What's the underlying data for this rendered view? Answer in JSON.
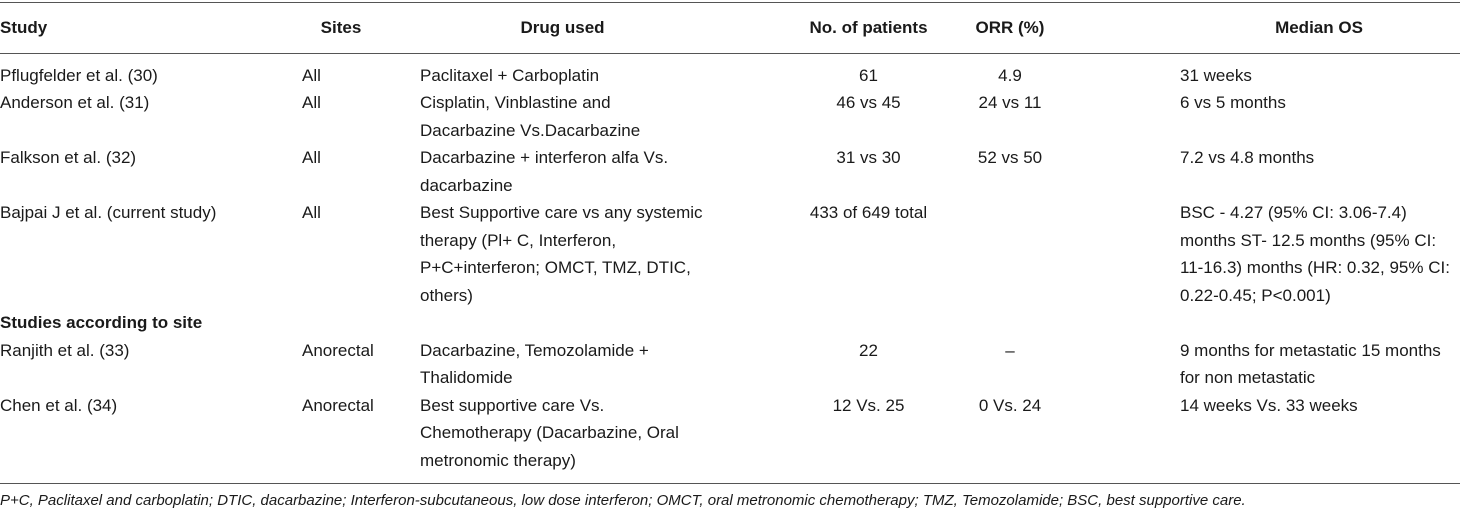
{
  "table": {
    "columns": [
      "Study",
      "Sites",
      "Drug used",
      "No. of patients",
      "ORR (%)",
      "Median OS"
    ],
    "rows": [
      [
        "Pflugfelder et al. (30)",
        "All",
        "Paclitaxel + Carboplatin",
        "61",
        "4.9",
        "31 weeks"
      ],
      [
        "Anderson et al. (31)",
        "All",
        "Cisplatin, Vinblastine and Dacarbazine Vs.Dacarbazine",
        "46 vs 45",
        "24 vs 11",
        "6 vs 5 months"
      ],
      [
        "Falkson et al. (32)",
        "All",
        "Dacarbazine + interferon alfa Vs. dacarbazine",
        "31 vs 30",
        "52 vs 50",
        "7.2 vs 4.8 months"
      ],
      [
        "Bajpai J et al. (current study)",
        "All",
        "Best Supportive care vs any systemic therapy (Pl+ C, Interferon, P+C+interferon; OMCT, TMZ, DTIC, others)",
        "433 of 649 total",
        null,
        "BSC - 4.27 (95% CI: 3.06-7.4) months ST- 12.5 months (95% CI: 11-16.3) months (HR: 0.32, 95% CI: 0.22-0.45; P<0.001)"
      ]
    ],
    "section": "Studies according to site",
    "section_rows": [
      [
        "Ranjith et al. (33)",
        "Anorectal",
        "Dacarbazine, Temozolamide + Thalidomide",
        "22",
        "–",
        "9 months for metastatic 15 months for non metastatic"
      ],
      [
        "Chen et al. (34)",
        "Anorectal",
        "Best supportive care Vs. Chemotherapy (Dacarbazine, Oral metronomic therapy)",
        "12 Vs. 25",
        "0 Vs. 24",
        "14 weeks Vs. 33 weeks"
      ]
    ],
    "footnote": "P+C, Paclitaxel and carboplatin; DTIC, dacarbazine; Interferon-subcutaneous, low dose interferon; OMCT, oral metronomic chemotherapy; TMZ, Temozolamide; BSC, best supportive care."
  }
}
